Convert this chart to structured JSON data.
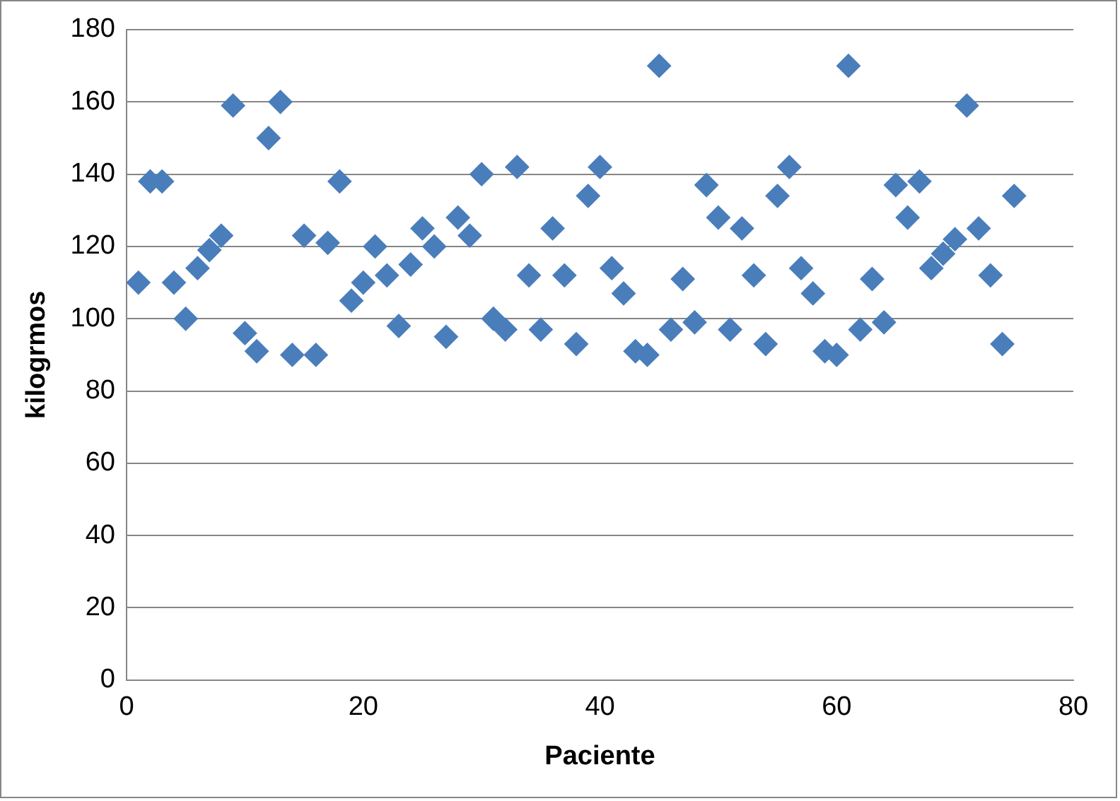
{
  "chart_data": {
    "type": "scatter",
    "xlabel": "Paciente",
    "ylabel": "kilogrmos",
    "x": [
      1,
      2,
      3,
      4,
      5,
      6,
      7,
      8,
      9,
      10,
      11,
      12,
      13,
      14,
      15,
      16,
      17,
      18,
      19,
      20,
      21,
      22,
      23,
      24,
      25,
      26,
      27,
      28,
      29,
      30,
      31,
      32,
      33,
      34,
      35,
      36,
      37,
      38,
      39,
      40,
      41,
      42,
      43,
      44,
      45,
      46,
      47,
      48,
      49,
      50,
      51,
      52,
      53,
      54,
      55,
      56,
      57,
      58,
      59,
      60,
      61,
      62,
      63,
      64,
      65,
      66,
      67,
      68,
      69,
      70,
      71,
      72,
      73,
      74,
      75
    ],
    "values": [
      110,
      138,
      138,
      110,
      100,
      114,
      119,
      123,
      159,
      96,
      91,
      150,
      160,
      90,
      123,
      90,
      121,
      138,
      105,
      110,
      120,
      112,
      98,
      115,
      125,
      120,
      95,
      128,
      123,
      140,
      100,
      97,
      142,
      112,
      97,
      125,
      112,
      93,
      134,
      142,
      114,
      107,
      91,
      90,
      170,
      97,
      111,
      99,
      137,
      128,
      97,
      125,
      112,
      93,
      134,
      142,
      114,
      107,
      91,
      90,
      170,
      97,
      111,
      99,
      137,
      128,
      138,
      114,
      118,
      122,
      159,
      125,
      112,
      93,
      134
    ],
    "color": "#4a7ebb",
    "marker": "diamond",
    "xlim": [
      0,
      80
    ],
    "xticks": [
      0,
      20,
      40,
      60,
      80
    ],
    "ylim": [
      0,
      180
    ],
    "yticks": [
      0,
      20,
      40,
      60,
      80,
      100,
      120,
      140,
      160,
      180
    ],
    "grid": "y",
    "legend": false
  }
}
